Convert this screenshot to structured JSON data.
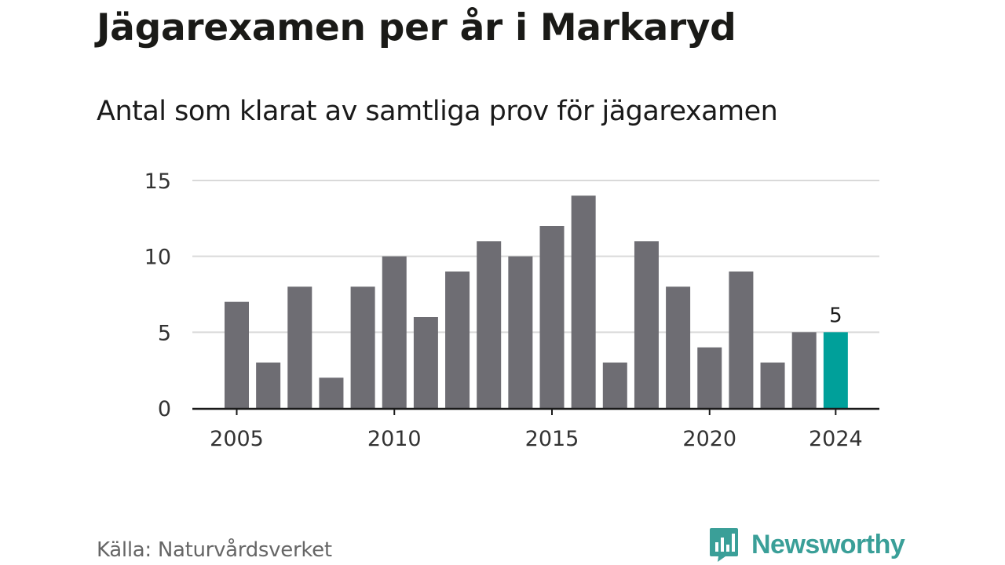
{
  "title": "Jägarexamen per år i Markaryd",
  "subtitle": "Antal som klarat av samtliga prov för jägarexamen",
  "source": "Källa: Naturvårdsverket",
  "brand": {
    "name": "Newsworthy",
    "icon": "newsworthy-logo-icon",
    "color": "#3a9f98"
  },
  "colors": {
    "bar": "#6e6d73",
    "highlight": "#00a09a",
    "grid": "#d9d9d9",
    "axis": "#1a1a1a"
  },
  "chart_data": {
    "type": "bar",
    "title": "Jägarexamen per år i Markaryd",
    "subtitle": "Antal som klarat av samtliga prov för jägarexamen",
    "xlabel": "",
    "ylabel": "",
    "categories": [
      "2005",
      "2006",
      "2007",
      "2008",
      "2009",
      "2010",
      "2011",
      "2012",
      "2013",
      "2014",
      "2015",
      "2016",
      "2017",
      "2018",
      "2019",
      "2020",
      "2021",
      "2022",
      "2023",
      "2024"
    ],
    "values": [
      7,
      3,
      8,
      2,
      8,
      10,
      6,
      9,
      11,
      10,
      12,
      14,
      3,
      11,
      8,
      4,
      9,
      3,
      5,
      5
    ],
    "highlight": "2024",
    "highlight_label": "5",
    "ylim": [
      0,
      15
    ],
    "yticks": [
      "0",
      "5",
      "10",
      "15"
    ],
    "xticks": [
      "2005",
      "2010",
      "2015",
      "2020",
      "2024"
    ],
    "grid": true,
    "legend": "none"
  }
}
